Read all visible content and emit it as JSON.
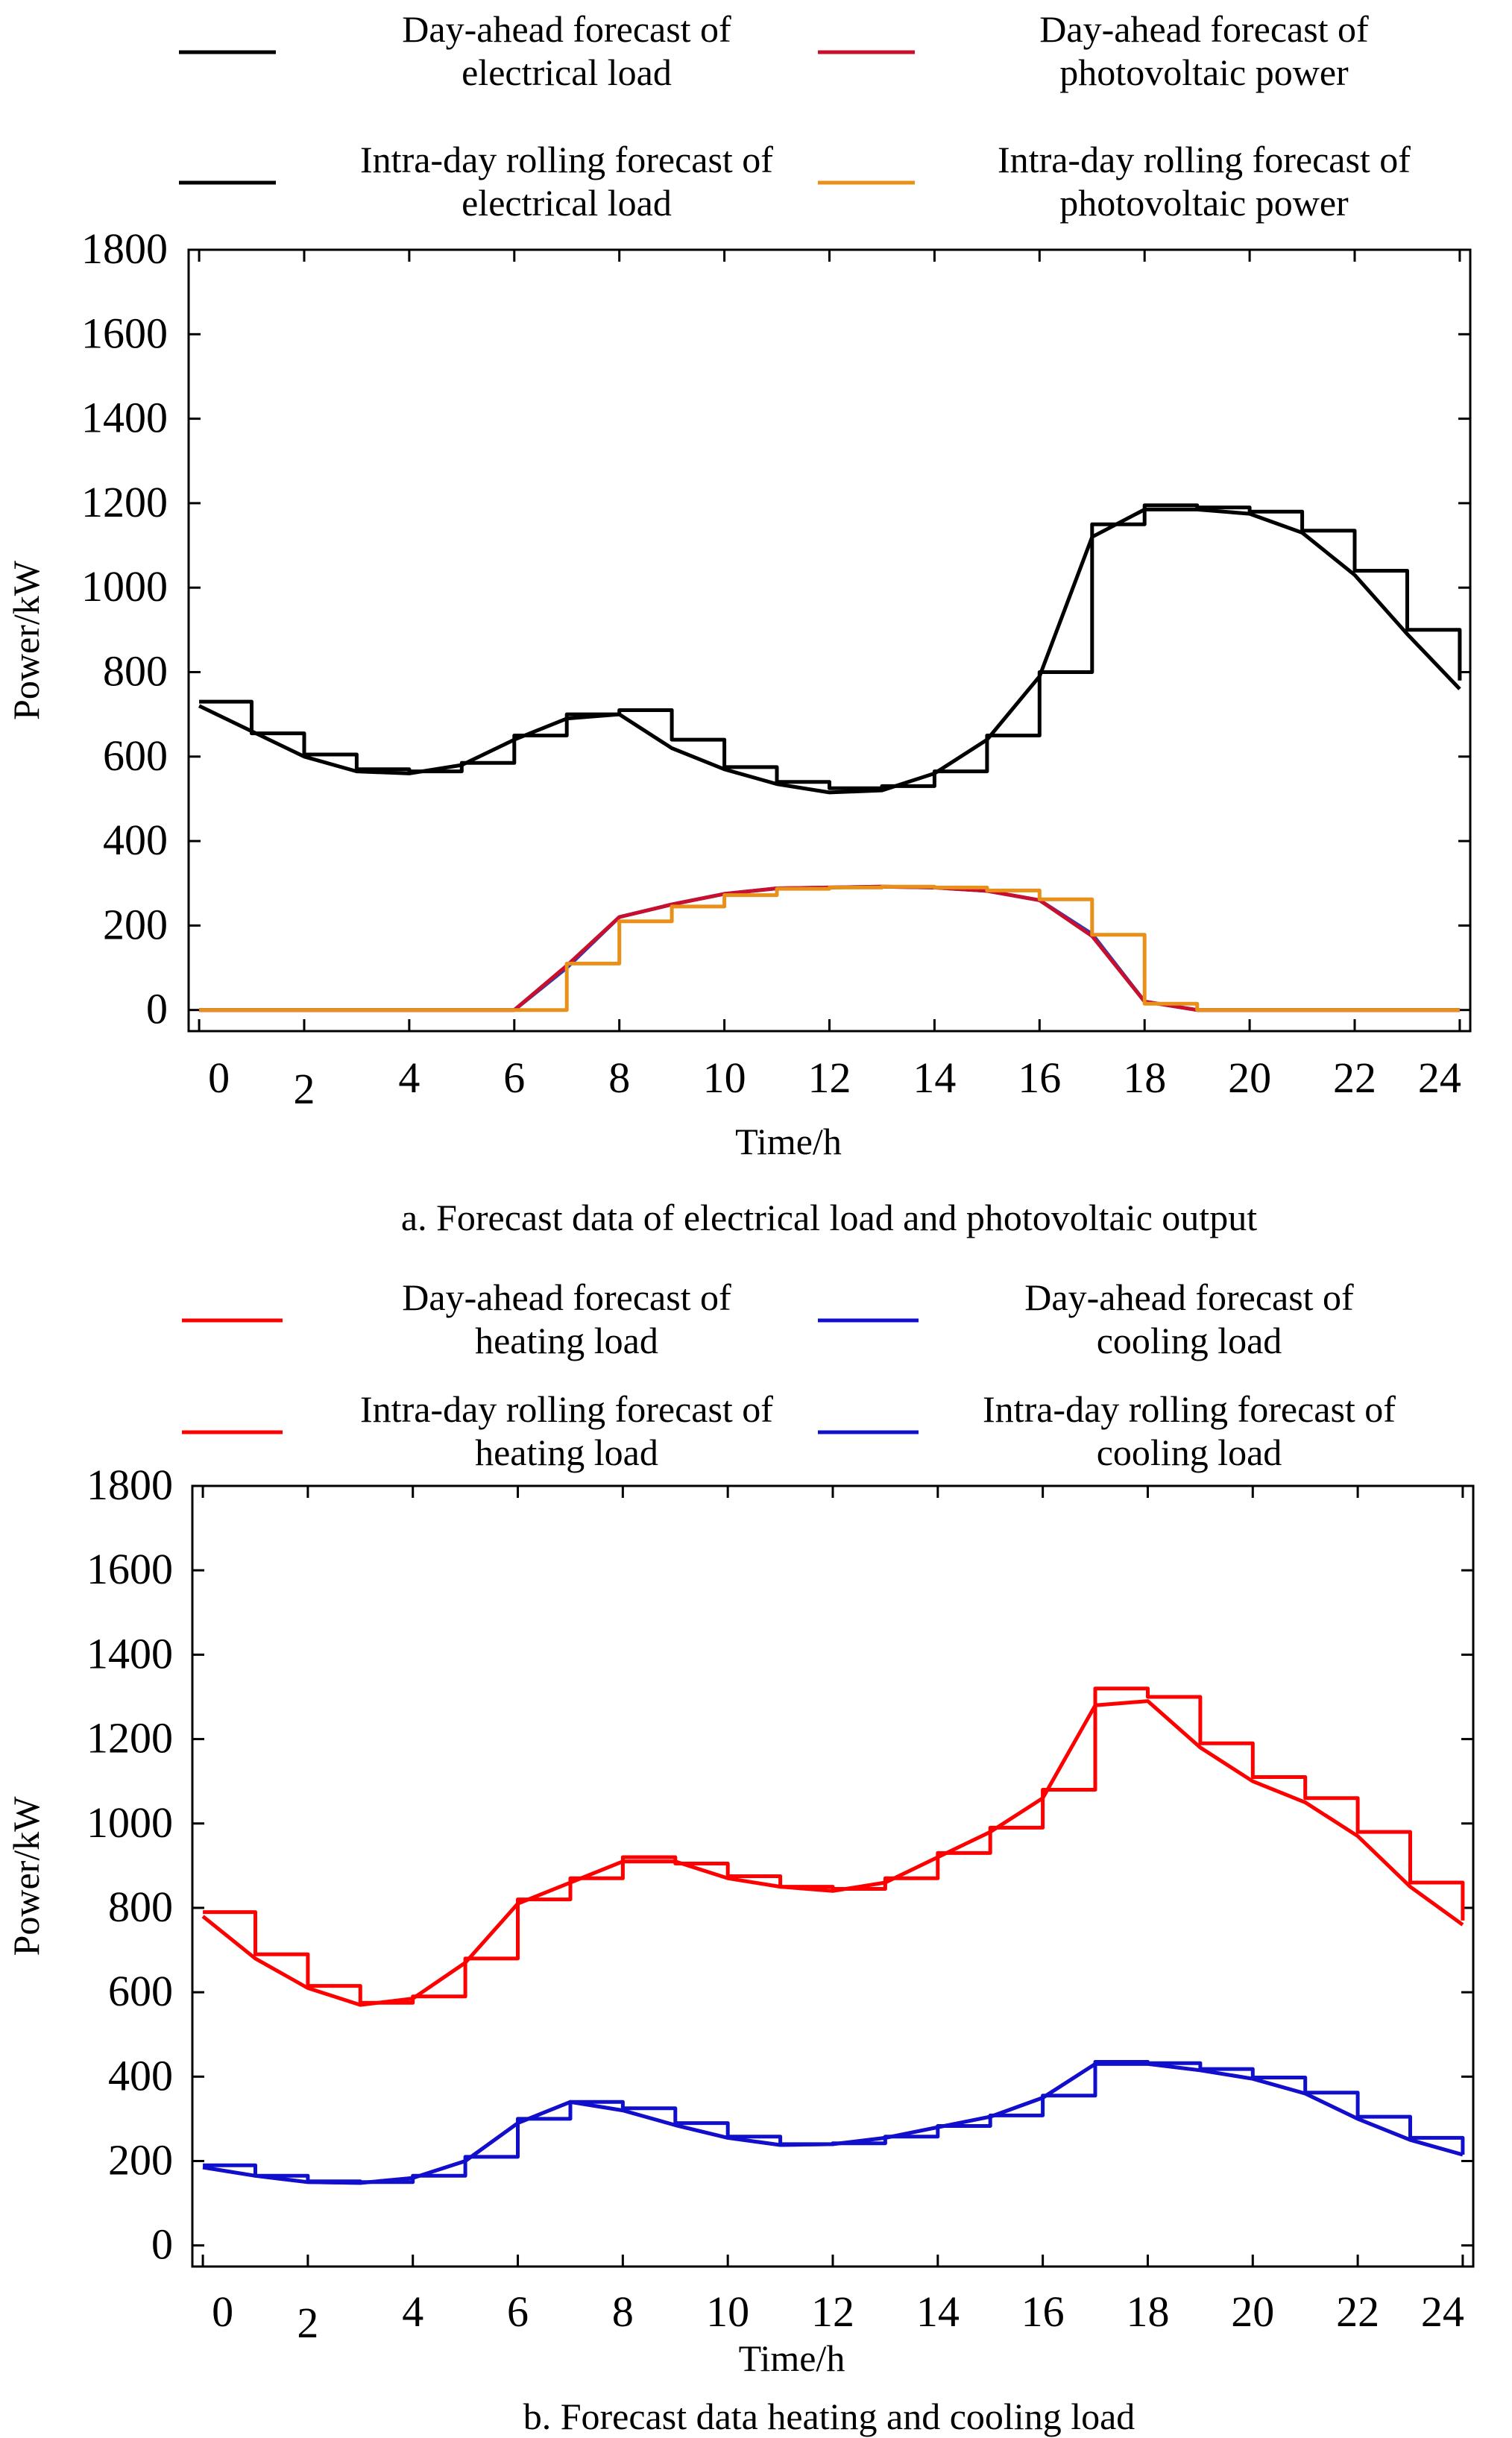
{
  "colors": {
    "elec_day": "#000000",
    "elec_intra": "#000000",
    "pv_day": "#c8102e",
    "pv_intra": "#e8901a",
    "pv_hidden_blue": "#1f3fbf",
    "heat_day": "#ff0000",
    "heat_intra": "#ff0000",
    "cool_day": "#1010cc",
    "cool_intra": "#1010cc",
    "cool_hidden_magenta": "#cc22cc"
  },
  "chart_data": [
    {
      "type": "line",
      "title": "",
      "caption": "a. Forecast data of electrical load and photovoltaic output",
      "xlabel": "Time/h",
      "ylabel": "Power/kW",
      "xlim": [
        -0.2,
        24.2
      ],
      "ylim": [
        -50,
        1800
      ],
      "yticks": [
        "0",
        "200",
        "400",
        "600",
        "800",
        "1000",
        "1200",
        "1400",
        "1600",
        "1800"
      ],
      "xticks": [
        {
          "label": "0",
          "x": 0,
          "low": false
        },
        {
          "label": "2",
          "x": 2,
          "low": true
        },
        {
          "label": "4",
          "x": 4,
          "low": false
        },
        {
          "label": "6",
          "x": 6,
          "low": false
        },
        {
          "label": "8",
          "x": 8,
          "low": false
        },
        {
          "label": "10",
          "x": 10,
          "low": false
        },
        {
          "label": "12",
          "x": 12,
          "low": false
        },
        {
          "label": "14",
          "x": 14,
          "low": false
        },
        {
          "label": "16",
          "x": 16,
          "low": false
        },
        {
          "label": "18",
          "x": 18,
          "low": false
        },
        {
          "label": "20",
          "x": 20,
          "low": false
        },
        {
          "label": "22",
          "x": 22,
          "low": false
        },
        {
          "label": "24",
          "x": 24,
          "low": false
        }
      ],
      "legend": [
        {
          "l1": "Day-ahead forecast of",
          "l2": "electrical load",
          "color_key": "elec_day"
        },
        {
          "l1": "Day-ahead forecast of",
          "l2": "photovoltaic power",
          "color_key": "pv_day"
        },
        {
          "l1": "Intra-day rolling forecast of",
          "l2": "electrical load",
          "color_key": "elec_intra"
        },
        {
          "l1": "Intra-day rolling forecast of",
          "l2": "photovoltaic power",
          "color_key": "pv_intra"
        }
      ],
      "x": [
        0,
        1,
        2,
        3,
        4,
        5,
        6,
        7,
        8,
        9,
        10,
        11,
        12,
        13,
        14,
        15,
        16,
        17,
        18,
        19,
        20,
        21,
        22,
        23,
        24
      ],
      "series": [
        {
          "name": "Day-ahead forecast of electrical load",
          "color_key": "elec_day",
          "step": false,
          "values": [
            720,
            660,
            600,
            565,
            560,
            580,
            640,
            690,
            700,
            620,
            570,
            535,
            515,
            520,
            560,
            640,
            790,
            1120,
            1185,
            1185,
            1175,
            1130,
            1030,
            890,
            760
          ]
        },
        {
          "name": "Intra-day rolling forecast of electrical load",
          "color_key": "elec_intra",
          "step": true,
          "values": [
            730,
            655,
            605,
            570,
            565,
            585,
            650,
            700,
            710,
            640,
            575,
            540,
            525,
            530,
            565,
            650,
            800,
            1150,
            1195,
            1190,
            1180,
            1135,
            1040,
            900,
            780
          ]
        },
        {
          "name": "Day-ahead forecast of photovoltaic power (hidden)",
          "color_key": "pv_hidden_blue",
          "step": false,
          "values": [
            0,
            0,
            0,
            0,
            0,
            0,
            0,
            100,
            220,
            250,
            275,
            288,
            290,
            292,
            290,
            282,
            260,
            180,
            20,
            0,
            0,
            0,
            0,
            0,
            0
          ]
        },
        {
          "name": "Day-ahead forecast of photovoltaic power",
          "color_key": "pv_day",
          "step": false,
          "values": [
            0,
            0,
            0,
            0,
            0,
            0,
            0,
            105,
            220,
            250,
            275,
            288,
            290,
            292,
            290,
            282,
            260,
            175,
            20,
            0,
            0,
            0,
            0,
            0,
            0
          ]
        },
        {
          "name": "Intra-day rolling forecast of photovoltaic power",
          "color_key": "pv_intra",
          "step": true,
          "values": [
            0,
            0,
            0,
            0,
            0,
            0,
            0,
            110,
            210,
            245,
            272,
            287,
            290,
            292,
            290,
            283,
            262,
            178,
            15,
            0,
            0,
            0,
            0,
            0,
            0
          ]
        }
      ]
    },
    {
      "type": "line",
      "title": "",
      "caption": "b. Forecast data heating and cooling load",
      "xlabel": "Time/h",
      "ylabel": "Power/kW",
      "xlim": [
        -0.2,
        24.2
      ],
      "ylim": [
        -50,
        1800
      ],
      "yticks": [
        "0",
        "200",
        "400",
        "600",
        "800",
        "1000",
        "1200",
        "1400",
        "1600",
        "1800"
      ],
      "xticks": [
        {
          "label": "0",
          "x": 0,
          "low": false
        },
        {
          "label": "2",
          "x": 2,
          "low": true
        },
        {
          "label": "4",
          "x": 4,
          "low": false
        },
        {
          "label": "6",
          "x": 6,
          "low": false
        },
        {
          "label": "8",
          "x": 8,
          "low": false
        },
        {
          "label": "10",
          "x": 10,
          "low": false
        },
        {
          "label": "12",
          "x": 12,
          "low": false
        },
        {
          "label": "14",
          "x": 14,
          "low": false
        },
        {
          "label": "16",
          "x": 16,
          "low": false
        },
        {
          "label": "18",
          "x": 18,
          "low": false
        },
        {
          "label": "20",
          "x": 20,
          "low": false
        },
        {
          "label": "22",
          "x": 22,
          "low": false
        },
        {
          "label": "24",
          "x": 24,
          "low": false
        }
      ],
      "legend": [
        {
          "l1": "Day-ahead forecast of",
          "l2": "heating load",
          "color_key": "heat_day"
        },
        {
          "l1": "Day-ahead forecast of",
          "l2": "cooling load",
          "color_key": "cool_day"
        },
        {
          "l1": "Intra-day rolling forecast of",
          "l2": "heating load",
          "color_key": "heat_intra"
        },
        {
          "l1": "Intra-day rolling forecast of",
          "l2": "cooling load",
          "color_key": "cool_intra"
        }
      ],
      "x": [
        0,
        1,
        2,
        3,
        4,
        5,
        6,
        7,
        8,
        9,
        10,
        11,
        12,
        13,
        14,
        15,
        16,
        17,
        18,
        19,
        20,
        21,
        22,
        23,
        24
      ],
      "series": [
        {
          "name": "Day-ahead forecast of heating load",
          "color_key": "heat_day",
          "step": false,
          "values": [
            780,
            680,
            610,
            570,
            585,
            670,
            810,
            860,
            910,
            910,
            870,
            850,
            840,
            860,
            920,
            980,
            1060,
            1280,
            1290,
            1180,
            1100,
            1050,
            970,
            850,
            760
          ]
        },
        {
          "name": "Intra-day rolling forecast of heating load",
          "color_key": "heat_intra",
          "step": true,
          "values": [
            790,
            690,
            615,
            575,
            590,
            680,
            820,
            870,
            920,
            905,
            875,
            850,
            845,
            870,
            930,
            990,
            1080,
            1320,
            1300,
            1190,
            1110,
            1060,
            980,
            860,
            770
          ]
        },
        {
          "name": "Day-ahead forecast of cooling load (hidden)",
          "color_key": "cool_hidden_magenta",
          "step": false,
          "values": [
            185,
            165,
            150,
            148,
            160,
            200,
            290,
            340,
            320,
            285,
            255,
            238,
            240,
            255,
            280,
            305,
            350,
            430,
            430,
            415,
            395,
            360,
            300,
            250,
            215
          ]
        },
        {
          "name": "Day-ahead forecast of cooling load",
          "color_key": "cool_day",
          "step": false,
          "values": [
            185,
            165,
            150,
            148,
            160,
            200,
            290,
            340,
            320,
            285,
            255,
            238,
            240,
            255,
            280,
            305,
            350,
            430,
            430,
            415,
            395,
            360,
            300,
            250,
            215
          ]
        },
        {
          "name": "Intra-day rolling forecast of cooling load",
          "color_key": "cool_intra",
          "step": true,
          "values": [
            190,
            165,
            152,
            150,
            165,
            210,
            300,
            340,
            325,
            290,
            258,
            240,
            242,
            258,
            283,
            308,
            355,
            435,
            432,
            418,
            398,
            362,
            305,
            255,
            215
          ]
        }
      ]
    }
  ]
}
